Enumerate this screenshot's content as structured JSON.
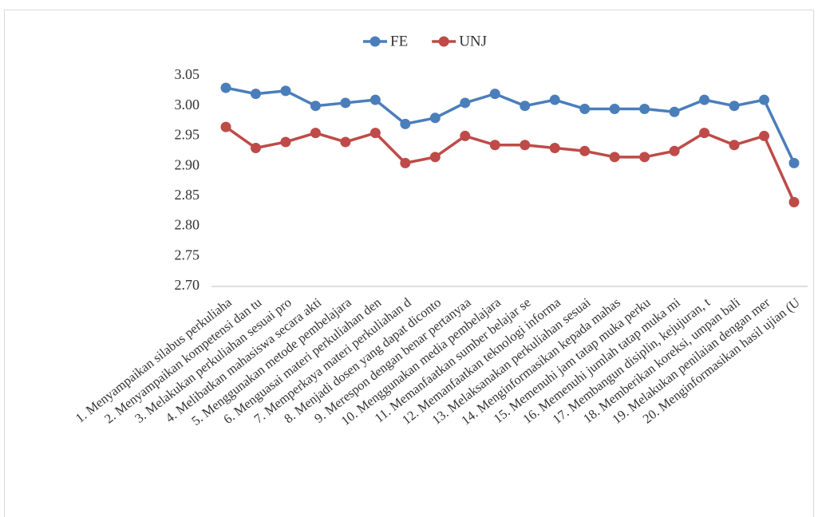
{
  "chart_data": {
    "type": "line",
    "categories": [
      "1. Menyampaikan silabus perkuliaha",
      "2. Menyampaikan kompetensi dan tu",
      "3. Melakukan perkuliahan sesuai pro",
      "4. Melibatkan mahasiswa secara akti",
      "5. Menggunakan metode pembelajara",
      "6. Menguasai materi perkuliahan den",
      "7. Memperkaya materi perkuliahan d",
      "8. Menjadi dosen yang dapat diconto",
      "9. Merespon dengan benar pertanyaa",
      "10. Menggunakan media pembelajara",
      "11. Memanfaatkan sumber belajar se",
      "12. Memanfaatkan teknologi informa",
      "13. Melaksanakan perkuliahan sesuai",
      "14. Menginformasikan kepada mahas",
      "15. Memenuhi jam tatap muka perku",
      "16. Memenuhi jumlah tatap muka mi",
      "17. Membangun disiplin, kejujuran, t",
      "18. Memberikan koreksi, umpan bali",
      "19. Melakukan penilaian dengan mer",
      "20. Menginformasikan hasil ujian (U"
    ],
    "series": [
      {
        "name": "FE",
        "color": "#4a7ebb",
        "values": [
          3.03,
          3.02,
          3.025,
          3.0,
          3.005,
          3.01,
          2.97,
          2.98,
          3.005,
          3.02,
          3.0,
          3.01,
          2.995,
          2.995,
          2.995,
          2.99,
          3.01,
          3.0,
          3.01,
          2.905
        ]
      },
      {
        "name": "UNJ",
        "color": "#be4b48",
        "values": [
          2.965,
          2.93,
          2.94,
          2.955,
          2.94,
          2.955,
          2.905,
          2.915,
          2.95,
          2.935,
          2.935,
          2.93,
          2.925,
          2.915,
          2.915,
          2.925,
          2.955,
          2.935,
          2.95,
          2.84
        ]
      }
    ],
    "ylim": [
      2.7,
      3.05
    ],
    "yticks": [
      {
        "value": 2.7,
        "label": "2.70"
      },
      {
        "value": 2.75,
        "label": "2.75"
      },
      {
        "value": 2.8,
        "label": "2.80"
      },
      {
        "value": 2.85,
        "label": "2.85"
      },
      {
        "value": 2.9,
        "label": "2.90"
      },
      {
        "value": 2.95,
        "label": "2.95"
      },
      {
        "value": 3.0,
        "label": "3.00"
      },
      {
        "value": 3.05,
        "label": "3.05"
      }
    ],
    "grid": false,
    "legend": "top"
  }
}
